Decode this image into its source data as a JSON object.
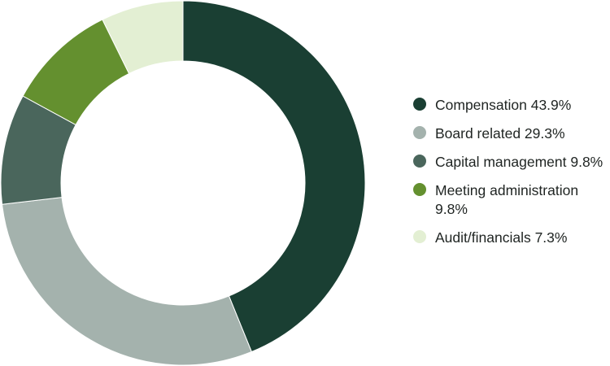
{
  "chart_data": {
    "type": "pie",
    "variant": "donut",
    "title": "",
    "start_angle": "12 o'clock",
    "direction": "clockwise",
    "categories": [
      "Compensation",
      "Board related",
      "Capital management",
      "Meeting administration",
      "Audit/financials"
    ],
    "values": [
      43.9,
      29.3,
      9.8,
      9.8,
      7.3
    ],
    "unit": "%",
    "colors": [
      "#1a3f33",
      "#a4b2ad",
      "#4a665c",
      "#64902f",
      "#e3efd3"
    ],
    "legend_position": "right",
    "grid": false
  },
  "legend": {
    "items": [
      {
        "label": "Compensation 43.9%",
        "color": "#1a3f33"
      },
      {
        "label": "Board related 29.3%",
        "color": "#a4b2ad"
      },
      {
        "label": "Capital management 9.8%",
        "color": "#4a665c"
      },
      {
        "label": "Meeting administration 9.8%",
        "color": "#64902f"
      },
      {
        "label": "Audit/financials 7.3%",
        "color": "#e3efd3"
      }
    ]
  }
}
